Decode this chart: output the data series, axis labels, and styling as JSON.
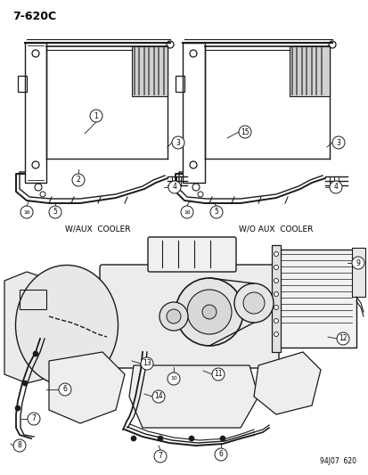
{
  "title": "7-620C",
  "footer": "94J07  620",
  "label_aux": "W/AUX  COOLER",
  "label_no_aux": "W/O AUX  COOLER",
  "bg_color": "#ffffff",
  "line_color": "#1a1a1a",
  "text_color": "#000000",
  "figsize": [
    4.14,
    5.33
  ],
  "dpi": 100
}
